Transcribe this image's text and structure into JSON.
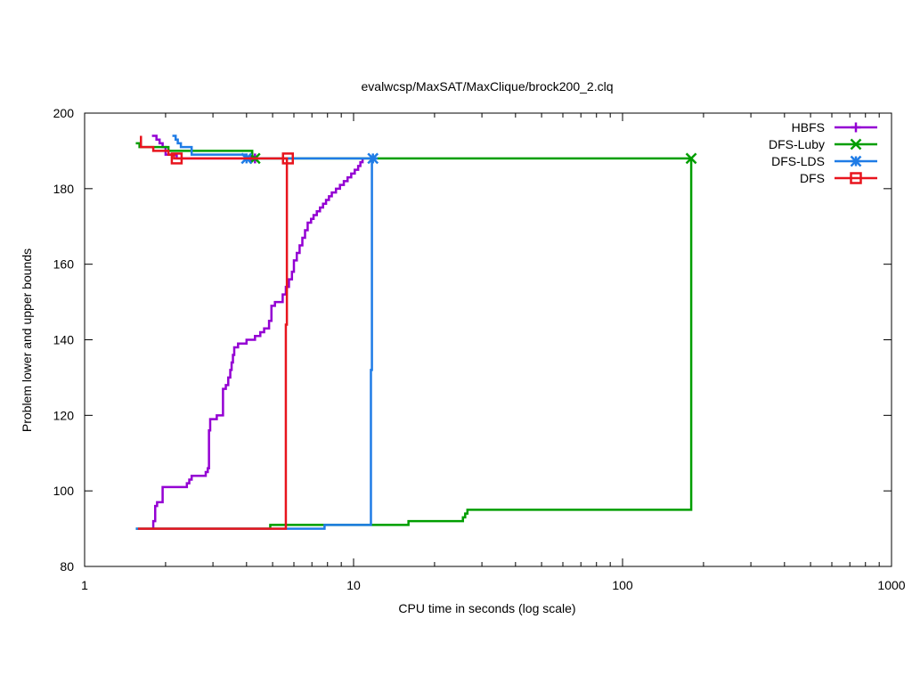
{
  "chart_data": {
    "type": "line",
    "title": "evalwcsp/MaxSAT/MaxClique/brock200_2.clq",
    "xlabel": "CPU time in seconds (log scale)",
    "ylabel": "Problem lower and upper bounds",
    "xscale": "log",
    "xlim": [
      1,
      1000
    ],
    "ylim": [
      80,
      200
    ],
    "xticks": [
      1,
      10,
      100,
      1000
    ],
    "xtick_labels": [
      "1",
      "10",
      "100",
      "1000"
    ],
    "yticks": [
      80,
      100,
      120,
      140,
      160,
      180,
      200
    ],
    "ytick_labels": [
      "80",
      "100",
      "120",
      "140",
      "160",
      "180",
      "200"
    ],
    "grid": false,
    "legend_position": "top-right",
    "series": [
      {
        "name": "HBFS",
        "color": "#9400d3",
        "marker": "plus",
        "markers": [
          [
            4.15,
            188
          ],
          [
            4.3,
            188
          ]
        ],
        "lines": [
          [
            [
              1.78,
              90
            ],
            [
              1.8,
              90
            ],
            [
              1.8,
              92
            ],
            [
              1.83,
              92
            ],
            [
              1.83,
              96
            ],
            [
              1.86,
              96
            ],
            [
              1.86,
              97
            ],
            [
              1.95,
              97
            ],
            [
              1.95,
              101
            ],
            [
              2.4,
              101
            ],
            [
              2.4,
              102
            ],
            [
              2.45,
              102
            ],
            [
              2.45,
              103
            ],
            [
              2.5,
              103
            ],
            [
              2.5,
              104
            ],
            [
              2.82,
              104
            ],
            [
              2.82,
              105
            ],
            [
              2.87,
              105
            ],
            [
              2.87,
              106
            ],
            [
              2.9,
              106
            ],
            [
              2.9,
              116
            ],
            [
              2.93,
              116
            ],
            [
              2.93,
              119
            ],
            [
              3.1,
              119
            ],
            [
              3.1,
              120
            ],
            [
              3.27,
              120
            ],
            [
              3.27,
              127
            ],
            [
              3.35,
              127
            ],
            [
              3.35,
              128
            ],
            [
              3.42,
              128
            ],
            [
              3.42,
              130
            ],
            [
              3.48,
              130
            ],
            [
              3.48,
              132
            ],
            [
              3.52,
              132
            ],
            [
              3.52,
              134
            ],
            [
              3.56,
              134
            ],
            [
              3.56,
              136
            ],
            [
              3.6,
              136
            ],
            [
              3.6,
              138
            ],
            [
              3.72,
              138
            ],
            [
              3.72,
              139
            ],
            [
              4.0,
              139
            ],
            [
              4.0,
              140
            ],
            [
              4.3,
              140
            ],
            [
              4.3,
              141
            ],
            [
              4.5,
              141
            ],
            [
              4.5,
              142
            ],
            [
              4.65,
              142
            ],
            [
              4.65,
              143
            ],
            [
              4.85,
              143
            ],
            [
              4.85,
              145
            ],
            [
              4.95,
              145
            ],
            [
              4.95,
              149
            ],
            [
              5.1,
              149
            ],
            [
              5.1,
              150
            ],
            [
              5.45,
              150
            ],
            [
              5.45,
              152
            ],
            [
              5.6,
              152
            ],
            [
              5.6,
              154
            ],
            [
              5.75,
              154
            ],
            [
              5.75,
              156
            ],
            [
              5.9,
              156
            ],
            [
              5.9,
              158
            ],
            [
              6.0,
              158
            ],
            [
              6.0,
              161
            ],
            [
              6.15,
              161
            ],
            [
              6.15,
              163
            ],
            [
              6.3,
              163
            ],
            [
              6.3,
              165
            ],
            [
              6.45,
              165
            ],
            [
              6.45,
              167
            ],
            [
              6.6,
              167
            ],
            [
              6.6,
              169
            ],
            [
              6.75,
              169
            ],
            [
              6.75,
              171
            ],
            [
              6.95,
              171
            ],
            [
              6.95,
              172
            ],
            [
              7.1,
              172
            ],
            [
              7.1,
              173
            ],
            [
              7.3,
              173
            ],
            [
              7.3,
              174
            ],
            [
              7.5,
              174
            ],
            [
              7.5,
              175
            ],
            [
              7.7,
              175
            ],
            [
              7.7,
              176
            ],
            [
              7.9,
              176
            ],
            [
              7.9,
              177
            ],
            [
              8.1,
              177
            ],
            [
              8.1,
              178
            ],
            [
              8.3,
              178
            ],
            [
              8.3,
              179
            ],
            [
              8.6,
              179
            ],
            [
              8.6,
              180
            ],
            [
              8.9,
              180
            ],
            [
              8.9,
              181
            ],
            [
              9.2,
              181
            ],
            [
              9.2,
              182
            ],
            [
              9.5,
              182
            ],
            [
              9.5,
              183
            ],
            [
              9.8,
              183
            ],
            [
              9.8,
              184
            ],
            [
              10.1,
              184
            ],
            [
              10.1,
              185
            ],
            [
              10.4,
              185
            ],
            [
              10.4,
              186
            ],
            [
              10.6,
              186
            ],
            [
              10.6,
              187
            ],
            [
              10.8,
              187
            ],
            [
              10.8,
              188
            ]
          ],
          [
            [
              1.78,
              194
            ],
            [
              1.85,
              194
            ],
            [
              1.85,
              193
            ],
            [
              1.9,
              193
            ],
            [
              1.9,
              192
            ],
            [
              1.95,
              192
            ],
            [
              1.95,
              191
            ],
            [
              2.0,
              191
            ],
            [
              2.0,
              189
            ],
            [
              2.2,
              189
            ],
            [
              2.2,
              188
            ],
            [
              4.3,
              188
            ]
          ]
        ]
      },
      {
        "name": "DFS-Luby",
        "color": "#009e00",
        "marker": "x",
        "markers": [
          [
            4.3,
            188
          ],
          [
            180,
            188
          ]
        ],
        "lines": [
          [
            [
              1.55,
              90
            ],
            [
              4.9,
              90
            ],
            [
              4.9,
              91
            ],
            [
              16,
              91
            ],
            [
              16,
              92
            ],
            [
              25.5,
              92
            ],
            [
              25.5,
              93
            ],
            [
              26,
              93
            ],
            [
              26,
              94
            ],
            [
              26.5,
              94
            ],
            [
              26.5,
              95
            ],
            [
              180,
              95
            ],
            [
              180,
              188
            ]
          ],
          [
            [
              1.55,
              192
            ],
            [
              1.6,
              192
            ],
            [
              1.6,
              191
            ],
            [
              2.05,
              191
            ],
            [
              2.05,
              190
            ],
            [
              4.2,
              190
            ],
            [
              4.2,
              188
            ],
            [
              180,
              188
            ]
          ]
        ]
      },
      {
        "name": "DFS-LDS",
        "color": "#1f7ce6",
        "marker": "star",
        "markers": [
          [
            4.0,
            188
          ],
          [
            11.8,
            188
          ]
        ],
        "lines": [
          [
            [
              1.55,
              90
            ],
            [
              7.8,
              90
            ],
            [
              7.8,
              91
            ],
            [
              11.6,
              91
            ],
            [
              11.6,
              132
            ],
            [
              11.7,
              132
            ],
            [
              11.7,
              188
            ],
            [
              11.8,
              188
            ]
          ],
          [
            [
              2.12,
              194
            ],
            [
              2.18,
              194
            ],
            [
              2.18,
              193
            ],
            [
              2.22,
              193
            ],
            [
              2.22,
              192
            ],
            [
              2.28,
              192
            ],
            [
              2.28,
              191
            ],
            [
              2.5,
              191
            ],
            [
              2.5,
              189
            ],
            [
              4.0,
              189
            ],
            [
              4.0,
              188
            ],
            [
              11.8,
              188
            ]
          ]
        ]
      },
      {
        "name": "DFS",
        "color": "#e8141d",
        "marker": "square",
        "markers": [
          [
            2.2,
            188
          ],
          [
            5.7,
            188
          ]
        ],
        "lines": [
          [
            [
              1.58,
              90
            ],
            [
              5.6,
              90
            ],
            [
              5.6,
              144
            ],
            [
              5.65,
              144
            ],
            [
              5.65,
              188
            ],
            [
              5.7,
              188
            ]
          ],
          [
            [
              1.62,
              194
            ],
            [
              1.62,
              191
            ],
            [
              1.8,
              191
            ],
            [
              1.8,
              190
            ],
            [
              2.05,
              190
            ],
            [
              2.05,
              189
            ],
            [
              2.15,
              189
            ],
            [
              2.15,
              188
            ],
            [
              5.7,
              188
            ]
          ]
        ]
      }
    ]
  }
}
